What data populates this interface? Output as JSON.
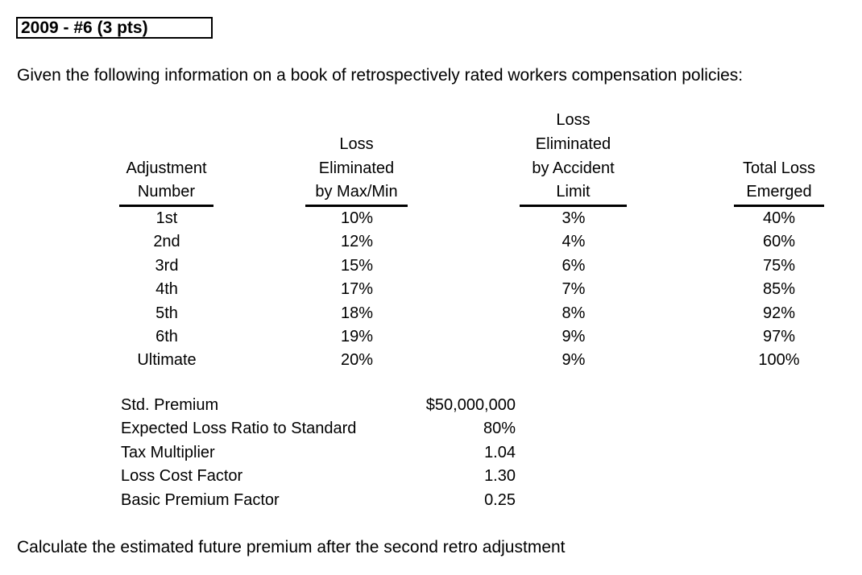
{
  "header": {
    "title": "2009 - #6 (3 pts)"
  },
  "intro_text": "Given the following information on a book of retrospectively rated workers compensation policies:",
  "table": {
    "columns": [
      {
        "lines": [
          "Adjustment",
          "Number"
        ]
      },
      {
        "lines": [
          "Loss",
          "Eliminated",
          "by Max/Min"
        ]
      },
      {
        "lines": [
          "Loss",
          "Eliminated",
          "by Accident",
          "Limit"
        ]
      },
      {
        "lines": [
          "Total Loss",
          "Emerged"
        ]
      }
    ],
    "rows": [
      {
        "adjustment": "1st",
        "by_max_min": "10%",
        "by_accident_limit": "3%",
        "total_emerged": "40%"
      },
      {
        "adjustment": "2nd",
        "by_max_min": "12%",
        "by_accident_limit": "4%",
        "total_emerged": "60%"
      },
      {
        "adjustment": "3rd",
        "by_max_min": "15%",
        "by_accident_limit": "6%",
        "total_emerged": "75%"
      },
      {
        "adjustment": "4th",
        "by_max_min": "17%",
        "by_accident_limit": "7%",
        "total_emerged": "85%"
      },
      {
        "adjustment": "5th",
        "by_max_min": "18%",
        "by_accident_limit": "8%",
        "total_emerged": "92%"
      },
      {
        "adjustment": "6th",
        "by_max_min": "19%",
        "by_accident_limit": "9%",
        "total_emerged": "97%"
      },
      {
        "adjustment": "Ultimate",
        "by_max_min": "20%",
        "by_accident_limit": "9%",
        "total_emerged": "100%"
      }
    ]
  },
  "parameters": [
    {
      "label": "Std. Premium",
      "value": "$50,000,000"
    },
    {
      "label": "Expected Loss Ratio to Standard",
      "value": "80%"
    },
    {
      "label": "Tax Multiplier",
      "value": "1.04"
    },
    {
      "label": "Loss Cost Factor",
      "value": "1.30"
    },
    {
      "label": "Basic Premium Factor",
      "value": "0.25"
    }
  ],
  "question_text": "Calculate the estimated future premium after the second retro adjustment"
}
